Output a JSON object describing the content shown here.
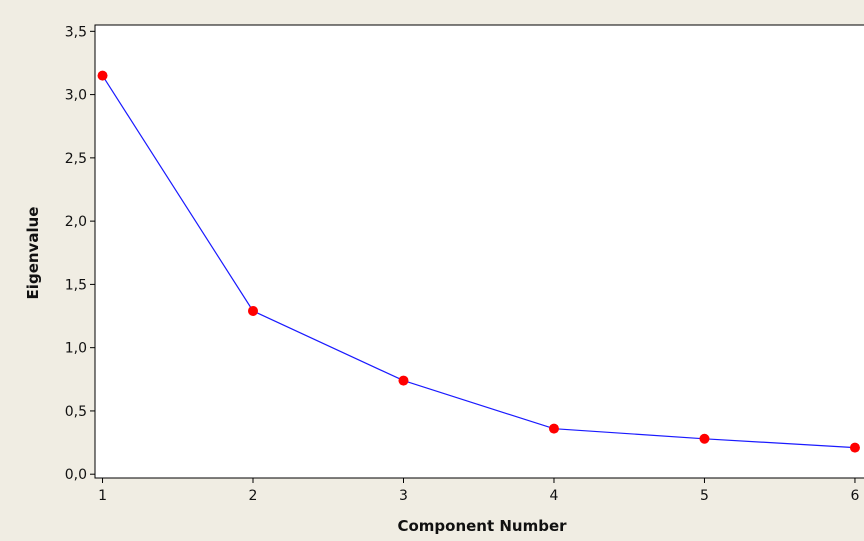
{
  "chart_data": {
    "type": "line",
    "title": "",
    "xlabel": "Component Number",
    "ylabel": "Eigenvalue",
    "x": [
      1,
      2,
      3,
      4,
      5,
      6
    ],
    "series": [
      {
        "values": [
          3.15,
          1.29,
          0.74,
          0.36,
          0.28,
          0.21
        ]
      }
    ],
    "xlim": [
      0.95,
      6.1
    ],
    "ylim": [
      -0.03,
      3.55
    ],
    "xticks": [
      "1",
      "2",
      "3",
      "4",
      "5",
      "6"
    ],
    "yticks": [
      "0,0",
      "0,5",
      "1,0",
      "1,5",
      "2,0",
      "2,5",
      "3,0",
      "3,5"
    ],
    "grid": false,
    "legend": "none",
    "colors": {
      "background": "#f0ede3",
      "plot_background": "#ffffff",
      "line": "#1a1aff",
      "marker": "#ff0000",
      "axis": "#000000"
    }
  }
}
